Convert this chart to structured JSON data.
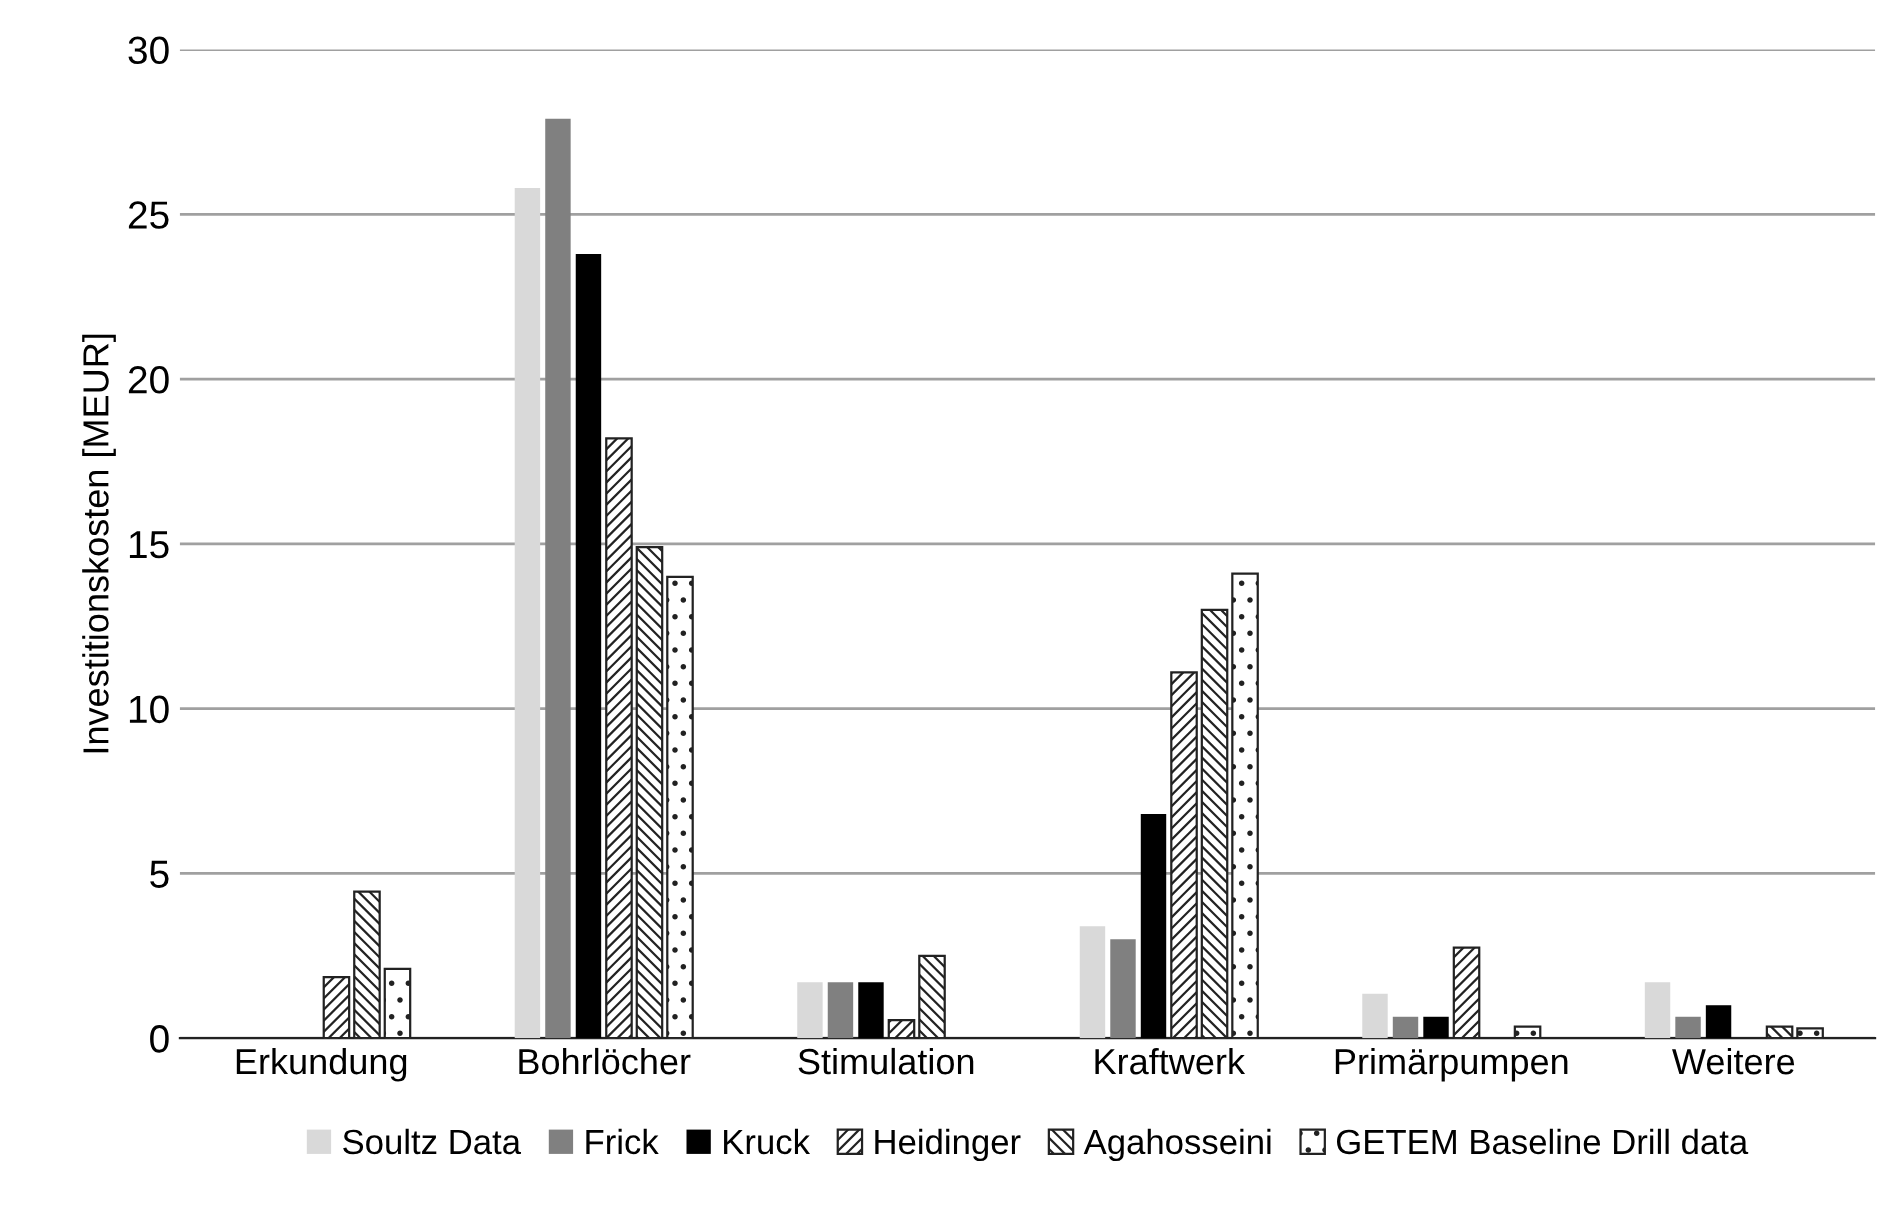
{
  "chart_data": {
    "type": "bar",
    "ylabel": "Investitionskosten [MEUR]",
    "categories": [
      "Erkundung",
      "Bohrlöcher",
      "Stimulation",
      "Kraftwerk",
      "Primärpumpen",
      "Weitere"
    ],
    "series": [
      {
        "name": "Soultz Data",
        "color": "#d9d9d9",
        "values": [
          0,
          25.8,
          1.7,
          3.4,
          1.35,
          1.7
        ]
      },
      {
        "name": "Frick",
        "color": "#808080",
        "values": [
          0,
          27.9,
          1.7,
          3.0,
          0.65,
          0.65
        ]
      },
      {
        "name": "Kruck",
        "color": "#000000",
        "values": [
          0,
          23.8,
          1.7,
          6.8,
          0.65,
          1.0
        ]
      },
      {
        "name": "Heidinger",
        "color": "#222222",
        "values": [
          1.85,
          18.2,
          0.55,
          11.1,
          2.75,
          0
        ]
      },
      {
        "name": "Agahosseini",
        "color": "#222222",
        "values": [
          4.45,
          14.9,
          2.5,
          13.0,
          0,
          0.35
        ]
      },
      {
        "name": "GETEM Baseline Drill data",
        "color": "#222222",
        "values": [
          2.1,
          14.0,
          0,
          14.1,
          0.35,
          0.3
        ]
      }
    ],
    "ylim": [
      0,
      30
    ],
    "yticks": [
      0,
      5,
      10,
      15,
      20,
      25,
      30
    ],
    "grid": "y",
    "legend": "bottom"
  }
}
